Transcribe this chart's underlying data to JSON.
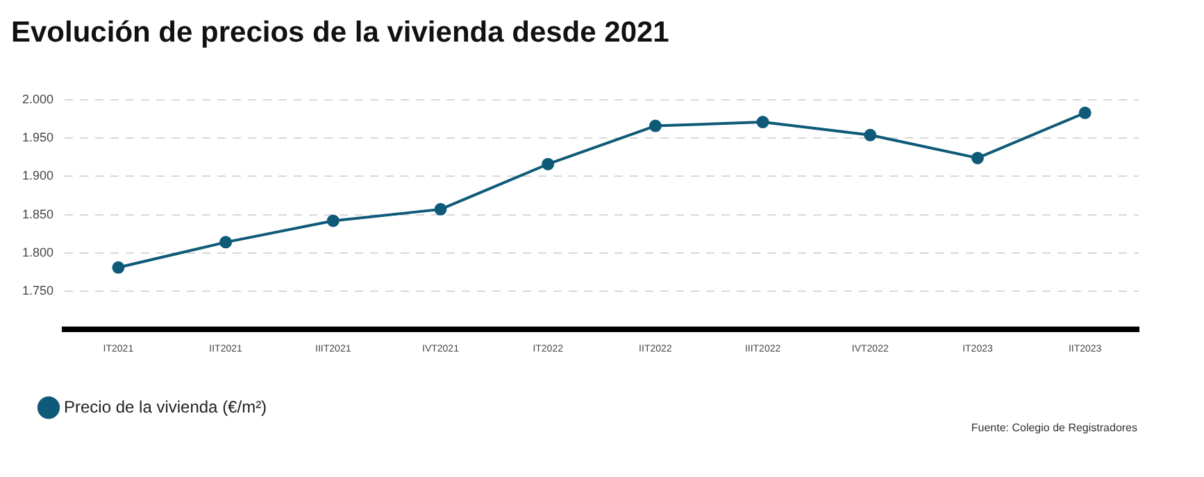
{
  "chart_data": {
    "type": "line",
    "title": "Evolución de precios de la vivienda desde 2021",
    "categories": [
      "IT2021",
      "IIT2021",
      "IIIT2021",
      "IVT2021",
      "IT2022",
      "IIT2022",
      "IIIT2022",
      "IVT2022",
      "IT2023",
      "IIT2023"
    ],
    "series": [
      {
        "name": "Precio de la vivienda (€/m²)",
        "color": "#0e5a78",
        "values": [
          1781,
          1814,
          1842,
          1857,
          1916,
          1966,
          1971,
          1954,
          1924,
          1983
        ]
      }
    ],
    "ylim": [
      1700,
      2000
    ],
    "yticks": [
      {
        "value": 1750,
        "label": "1.750"
      },
      {
        "value": 1800,
        "label": "1.800"
      },
      {
        "value": 1850,
        "label": "1.850"
      },
      {
        "value": 1900,
        "label": "1.900"
      },
      {
        "value": 1950,
        "label": "1.950"
      },
      {
        "value": 2000,
        "label": "2.000"
      }
    ],
    "grid": "y",
    "legend": "bottom left",
    "marker": "circle",
    "line_style": "solid",
    "annotations": [
      "Fuente: Colegio de Registradores"
    ]
  }
}
